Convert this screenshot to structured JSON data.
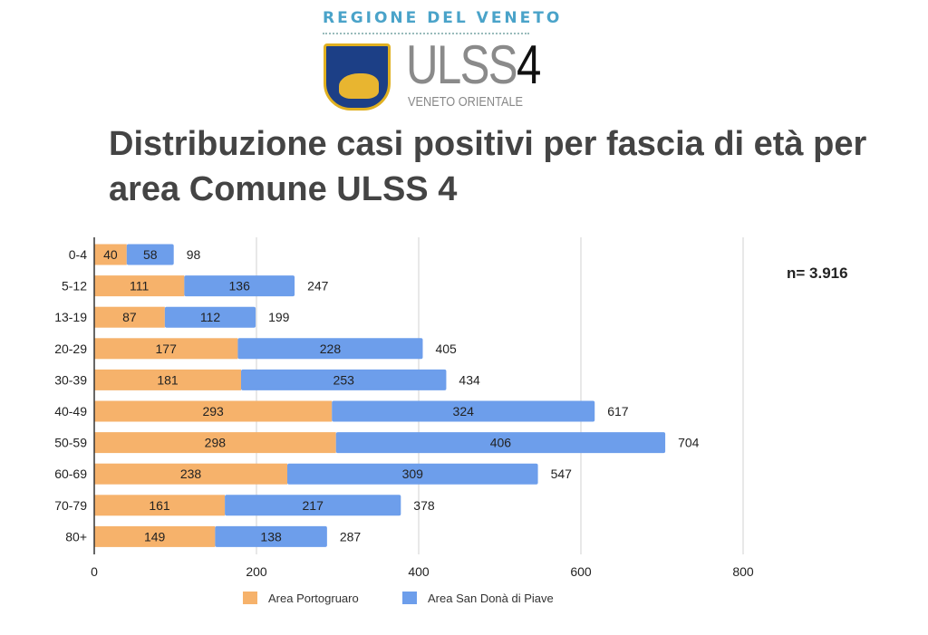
{
  "logo": {
    "region": "REGIONE DEL VENETO",
    "name": "ULSS",
    "number": "4",
    "subtitle": "VENETO ORIENTALE"
  },
  "n_label": "n= 3.916",
  "chart_data": {
    "type": "bar",
    "orientation": "horizontal",
    "stacked": true,
    "title": "Distribuzione casi positivi per fascia di età per area Comune ULSS 4",
    "categories": [
      "0-4",
      "5-12",
      "13-19",
      "20-29",
      "30-39",
      "40-49",
      "50-59",
      "60-69",
      "70-79",
      "80+"
    ],
    "series": [
      {
        "name": "Area Portogruaro",
        "color": "#f6b26b",
        "values": [
          40,
          111,
          87,
          177,
          181,
          293,
          298,
          238,
          161,
          149
        ]
      },
      {
        "name": "Area San Donà di Piave",
        "color": "#6d9eeb",
        "values": [
          58,
          136,
          112,
          228,
          253,
          324,
          406,
          309,
          217,
          138
        ]
      }
    ],
    "totals": [
      98,
      247,
      199,
      405,
      434,
      617,
      704,
      547,
      378,
      287
    ],
    "xlim": [
      0,
      800
    ],
    "xticks": [
      0,
      200,
      400,
      600,
      800
    ],
    "grid": true,
    "legend": "bottom"
  }
}
